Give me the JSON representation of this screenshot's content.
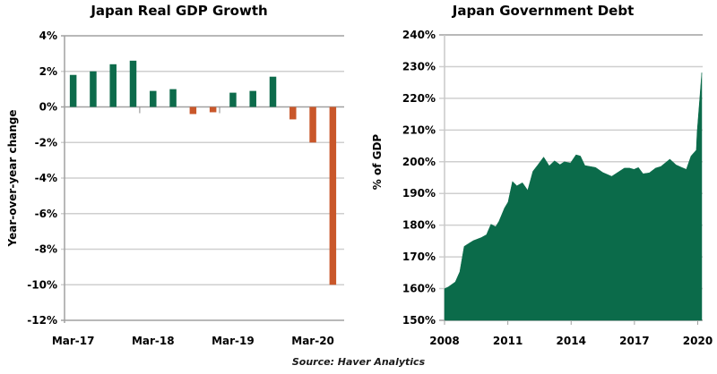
{
  "chart_data": [
    {
      "type": "bar",
      "title": "Japan Real GDP Growth",
      "xlabel": "",
      "ylabel": "Year-over-year change",
      "ylim": [
        -12,
        4
      ],
      "yticks": [
        4,
        2,
        0,
        -2,
        -4,
        -6,
        -8,
        -10,
        -12
      ],
      "ytick_labels": [
        "4%",
        "2%",
        "0%",
        "-2%",
        "-4%",
        "-6%",
        "-8%",
        "-10%",
        "-12%"
      ],
      "categories": [
        "Mar-17",
        "Jun-17",
        "Sep-17",
        "Dec-17",
        "Mar-18",
        "Jun-18",
        "Sep-18",
        "Dec-18",
        "Mar-19",
        "Jun-19",
        "Sep-19",
        "Dec-19",
        "Mar-20",
        "Jun-20"
      ],
      "xtick_labels": [
        "Mar-17",
        "Mar-18",
        "Mar-19",
        "Mar-20"
      ],
      "values": [
        1.8,
        2.0,
        2.4,
        2.6,
        0.9,
        1.0,
        -0.4,
        -0.3,
        0.8,
        0.9,
        1.7,
        -0.7,
        -2.0,
        -10.0
      ],
      "colors": {
        "positive": "#0d6b4b",
        "negative": "#c9572a"
      },
      "grid": true,
      "legend": "none"
    },
    {
      "type": "area",
      "title": "Japan Government Debt",
      "xlabel": "",
      "ylabel": "% of GDP",
      "ylim": [
        150,
        240
      ],
      "xlim": [
        2008,
        2020.2
      ],
      "yticks": [
        240,
        230,
        220,
        210,
        200,
        190,
        180,
        170,
        160,
        150
      ],
      "ytick_labels": [
        "240%",
        "230%",
        "220%",
        "210%",
        "200%",
        "190%",
        "180%",
        "170%",
        "160%",
        "150%"
      ],
      "xticks": [
        2008,
        2011,
        2014,
        2017,
        2020
      ],
      "xtick_labels": [
        "2008",
        "2011",
        "2014",
        "2017",
        "2020"
      ],
      "x": [
        2008.0,
        2008.17,
        2008.51,
        2008.72,
        2008.93,
        2009.14,
        2009.36,
        2009.74,
        2009.99,
        2010.2,
        2010.42,
        2010.58,
        2010.84,
        2011.01,
        2011.22,
        2011.43,
        2011.69,
        2011.94,
        2012.19,
        2012.41,
        2012.7,
        2012.96,
        2013.21,
        2013.47,
        2013.68,
        2013.97,
        2014.23,
        2014.44,
        2014.65,
        2015.16,
        2015.5,
        2015.92,
        2016.52,
        2016.77,
        2016.98,
        2017.19,
        2017.41,
        2017.7,
        2018.0,
        2018.25,
        2018.68,
        2018.97,
        2019.25,
        2019.46,
        2019.68,
        2019.93,
        2019.97,
        2020.19
      ],
      "values": [
        160.0,
        160.5,
        162.1,
        165.3,
        173.3,
        174.2,
        175.1,
        176.1,
        177.0,
        180.3,
        179.5,
        181.2,
        185.4,
        187.3,
        193.8,
        192.4,
        193.4,
        191.0,
        197.0,
        198.9,
        201.5,
        198.7,
        200.3,
        199.1,
        200.0,
        199.6,
        202.2,
        201.8,
        198.8,
        198.2,
        196.6,
        195.4,
        198.0,
        198.0,
        197.6,
        198.2,
        196.2,
        196.5,
        198.0,
        198.5,
        200.8,
        199.0,
        198.2,
        197.6,
        201.8,
        203.7,
        209.3,
        228.1
      ],
      "color": "#0b6b4a",
      "grid": true,
      "legend": "none"
    }
  ],
  "source": "Source: Haver Analytics"
}
